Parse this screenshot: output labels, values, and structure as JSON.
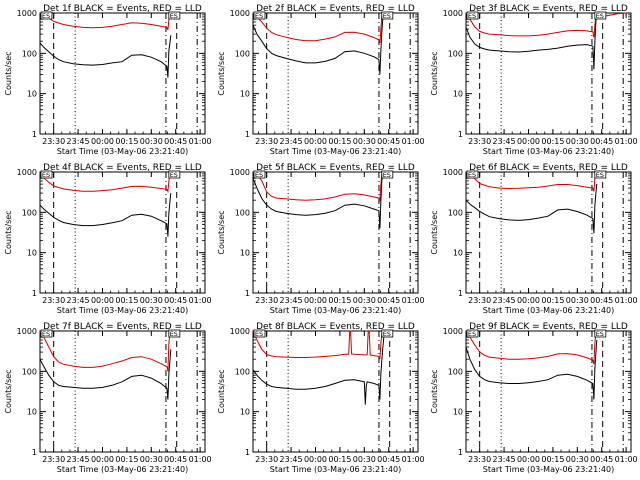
{
  "colors": {
    "events": "#000000",
    "lld": "#d40000",
    "axes": "#000000",
    "background": "#ffffff"
  },
  "shared": {
    "ylabel": "Counts/sec",
    "xlabel": "Start Time (03-May-06 23:21:40)",
    "y_scale": "log",
    "ylim": [
      1,
      1000
    ],
    "xlim": [
      23.36,
      25.05
    ],
    "y_ticks": [
      {
        "v": 1,
        "label": "1"
      },
      {
        "v": 10,
        "label": "10"
      },
      {
        "v": 100,
        "label": "100"
      },
      {
        "v": 1000,
        "label": "1000"
      }
    ],
    "x_ticks": [
      {
        "v": 23.5,
        "label": "23:30"
      },
      {
        "v": 23.75,
        "label": "23:45"
      },
      {
        "v": 24.0,
        "label": "00:00"
      },
      {
        "v": 24.25,
        "label": "00:15"
      },
      {
        "v": 24.5,
        "label": "00:30"
      },
      {
        "v": 24.75,
        "label": "00:45"
      },
      {
        "v": 25.0,
        "label": "01:00"
      }
    ],
    "marker_label": "ES",
    "reference_lines": [
      {
        "x": 23.5,
        "style": "dashed"
      },
      {
        "x": 23.72,
        "style": "dotted"
      },
      {
        "x": 24.65,
        "style": "dashdot"
      },
      {
        "x": 24.76,
        "style": "dashed"
      },
      {
        "x": 24.97,
        "style": "dashdot"
      }
    ]
  },
  "chart_data": [
    {
      "type": "line",
      "title": "Det 1f BLACK = Events, RED = LLD",
      "series": [
        {
          "name": "Events",
          "x": [
            23.36,
            23.4,
            23.45,
            23.5,
            23.55,
            23.6,
            23.7,
            23.8,
            23.9,
            24.0,
            24.1,
            24.2,
            24.3,
            24.4,
            24.5,
            24.6,
            24.66,
            24.67,
            24.68,
            24.69,
            24.7
          ],
          "y": [
            180,
            140,
            110,
            85,
            70,
            62,
            55,
            52,
            51,
            53,
            58,
            62,
            90,
            92,
            80,
            62,
            48,
            25,
            120,
            180,
            280
          ]
        },
        {
          "name": "LLD",
          "x": [
            23.36,
            23.4,
            23.45,
            23.5,
            23.6,
            23.7,
            23.8,
            23.9,
            24.0,
            24.1,
            24.2,
            24.3,
            24.4,
            24.5,
            24.6,
            24.66,
            24.67,
            24.68,
            24.69,
            24.7
          ],
          "y": [
            1000,
            900,
            760,
            620,
            520,
            470,
            440,
            430,
            440,
            470,
            520,
            570,
            560,
            520,
            470,
            440,
            380,
            700,
            950,
            1000
          ]
        }
      ]
    },
    {
      "type": "line",
      "title": "Det 2f BLACK = Events, RED = LLD",
      "series": [
        {
          "name": "Events",
          "x": [
            23.36,
            23.4,
            23.45,
            23.5,
            23.55,
            23.6,
            23.7,
            23.8,
            23.9,
            24.0,
            24.1,
            24.2,
            24.3,
            24.4,
            24.5,
            24.6,
            24.65,
            24.66,
            24.67,
            24.68,
            24.69,
            24.7
          ],
          "y": [
            500,
            300,
            200,
            130,
            100,
            88,
            75,
            65,
            58,
            58,
            63,
            75,
            110,
            115,
            100,
            82,
            70,
            30,
            120,
            350,
            800,
            1000
          ]
        },
        {
          "name": "LLD",
          "x": [
            23.36,
            23.4,
            23.45,
            23.5,
            23.55,
            23.6,
            23.7,
            23.8,
            23.9,
            24.0,
            24.1,
            24.2,
            24.3,
            24.4,
            24.5,
            24.6,
            24.65,
            24.66,
            24.67,
            24.68,
            24.69,
            24.7
          ],
          "y": [
            1000,
            800,
            600,
            420,
            330,
            290,
            250,
            220,
            205,
            205,
            225,
            255,
            330,
            335,
            300,
            245,
            215,
            180,
            400,
            900,
            1000,
            1000
          ]
        }
      ]
    },
    {
      "type": "line",
      "title": "Det 3f BLACK = Events, RED = LLD",
      "series": [
        {
          "name": "Events",
          "x": [
            23.36,
            23.4,
            23.45,
            23.5,
            23.55,
            23.6,
            23.7,
            23.8,
            23.9,
            24.0,
            24.1,
            24.2,
            24.3,
            24.4,
            24.5,
            24.6,
            24.66,
            24.67,
            24.68,
            24.69,
            24.7,
            24.8,
            24.9,
            25.0
          ],
          "y": [
            450,
            250,
            170,
            140,
            128,
            120,
            115,
            110,
            108,
            112,
            120,
            125,
            135,
            150,
            160,
            165,
            150,
            40,
            200,
            600,
            1000,
            1000,
            1000,
            1000
          ]
        },
        {
          "name": "LLD",
          "x": [
            23.36,
            23.4,
            23.45,
            23.5,
            23.55,
            23.6,
            23.7,
            23.8,
            23.9,
            24.0,
            24.1,
            24.2,
            24.3,
            24.4,
            24.5,
            24.6,
            24.66,
            24.67,
            24.68,
            24.69,
            24.7,
            24.8,
            24.9,
            25.0
          ],
          "y": [
            1000,
            700,
            450,
            350,
            320,
            300,
            290,
            275,
            270,
            270,
            280,
            300,
            330,
            360,
            370,
            360,
            340,
            250,
            500,
            900,
            1000,
            850,
            950,
            1000
          ]
        }
      ]
    },
    {
      "type": "line",
      "title": "Det 4f BLACK = Events, RED = LLD",
      "series": [
        {
          "name": "Events",
          "x": [
            23.36,
            23.4,
            23.45,
            23.5,
            23.55,
            23.6,
            23.7,
            23.8,
            23.9,
            24.0,
            24.1,
            24.2,
            24.3,
            24.4,
            24.5,
            24.6,
            24.66,
            24.67,
            24.68,
            24.69,
            24.7
          ],
          "y": [
            150,
            120,
            95,
            75,
            64,
            56,
            50,
            47,
            47,
            50,
            55,
            62,
            85,
            90,
            80,
            62,
            52,
            25,
            100,
            180,
            300
          ]
        },
        {
          "name": "LLD",
          "x": [
            23.36,
            23.4,
            23.45,
            23.5,
            23.6,
            23.7,
            23.8,
            23.9,
            24.0,
            24.1,
            24.2,
            24.3,
            24.4,
            24.5,
            24.6,
            24.66,
            24.67,
            24.68,
            24.69,
            24.7
          ],
          "y": [
            900,
            700,
            560,
            450,
            380,
            350,
            335,
            335,
            345,
            365,
            400,
            440,
            445,
            420,
            390,
            370,
            330,
            600,
            900,
            1000
          ]
        }
      ]
    },
    {
      "type": "line",
      "title": "Det 5f BLACK = Events, RED = LLD",
      "series": [
        {
          "name": "Events",
          "x": [
            23.36,
            23.4,
            23.45,
            23.5,
            23.55,
            23.6,
            23.7,
            23.8,
            23.9,
            24.0,
            24.1,
            24.2,
            24.3,
            24.4,
            24.5,
            24.6,
            24.65,
            24.66,
            24.67,
            24.68,
            24.69,
            24.7
          ],
          "y": [
            700,
            400,
            220,
            150,
            120,
            105,
            95,
            88,
            85,
            88,
            95,
            110,
            150,
            160,
            145,
            120,
            110,
            40,
            200,
            600,
            1000,
            1000
          ]
        },
        {
          "name": "LLD",
          "x": [
            23.36,
            23.4,
            23.45,
            23.5,
            23.55,
            23.6,
            23.7,
            23.8,
            23.9,
            24.0,
            24.1,
            24.2,
            24.3,
            24.4,
            24.5,
            24.6,
            24.65,
            24.66,
            24.67,
            24.68,
            24.69,
            24.7
          ],
          "y": [
            1000,
            900,
            600,
            320,
            250,
            225,
            215,
            205,
            200,
            205,
            215,
            240,
            280,
            290,
            270,
            240,
            225,
            200,
            500,
            950,
            1000,
            1000
          ]
        }
      ]
    },
    {
      "type": "line",
      "title": "Det 6f BLACK = Events, RED = LLD",
      "series": [
        {
          "name": "Events",
          "x": [
            23.36,
            23.4,
            23.45,
            23.5,
            23.55,
            23.6,
            23.7,
            23.8,
            23.9,
            24.0,
            24.1,
            24.2,
            24.3,
            24.4,
            24.5,
            24.6,
            24.66,
            24.67,
            24.68,
            24.69,
            24.7
          ],
          "y": [
            200,
            160,
            130,
            105,
            90,
            78,
            70,
            65,
            63,
            66,
            72,
            80,
            115,
            120,
            105,
            85,
            70,
            30,
            150,
            300,
            500
          ]
        },
        {
          "name": "LLD",
          "x": [
            23.36,
            23.4,
            23.45,
            23.5,
            23.6,
            23.7,
            23.8,
            23.9,
            24.0,
            24.1,
            24.2,
            24.3,
            24.4,
            24.5,
            24.6,
            24.66,
            24.67,
            24.68,
            24.69,
            24.7
          ],
          "y": [
            1000,
            850,
            680,
            520,
            430,
            400,
            390,
            395,
            405,
            420,
            450,
            490,
            490,
            460,
            420,
            400,
            330,
            700,
            950,
            1000
          ]
        }
      ]
    },
    {
      "type": "line",
      "title": "Det 7f BLACK = Events, RED = LLD",
      "series": [
        {
          "name": "Events",
          "x": [
            23.36,
            23.4,
            23.45,
            23.5,
            23.55,
            23.6,
            23.7,
            23.8,
            23.9,
            24.0,
            24.1,
            24.2,
            24.3,
            24.4,
            24.5,
            24.6,
            24.66,
            24.67,
            24.68,
            24.69,
            24.7
          ],
          "y": [
            200,
            130,
            80,
            55,
            45,
            42,
            40,
            38,
            38,
            40,
            45,
            55,
            75,
            80,
            68,
            50,
            38,
            20,
            90,
            180,
            350
          ]
        },
        {
          "name": "LLD",
          "x": [
            23.36,
            23.4,
            23.45,
            23.5,
            23.55,
            23.6,
            23.7,
            23.8,
            23.9,
            24.0,
            24.1,
            24.2,
            24.3,
            24.4,
            24.5,
            24.6,
            24.66,
            24.67,
            24.68,
            24.69,
            24.7
          ],
          "y": [
            1000,
            700,
            400,
            230,
            170,
            150,
            135,
            125,
            125,
            135,
            155,
            180,
            220,
            230,
            200,
            155,
            130,
            100,
            500,
            900,
            1000
          ]
        }
      ]
    },
    {
      "type": "line",
      "title": "Det 8f BLACK = Events, RED = LLD",
      "series": [
        {
          "name": "Events",
          "x": [
            23.36,
            23.4,
            23.45,
            23.5,
            23.55,
            23.6,
            23.7,
            23.8,
            23.9,
            24.0,
            24.1,
            24.2,
            24.3,
            24.4,
            24.5,
            24.51,
            24.52,
            24.53,
            24.6,
            24.65,
            24.66,
            24.67,
            24.68,
            24.69,
            24.7
          ],
          "y": [
            110,
            80,
            60,
            48,
            42,
            40,
            38,
            36,
            36,
            38,
            42,
            50,
            60,
            62,
            55,
            15,
            45,
            55,
            50,
            45,
            20,
            90,
            200,
            400,
            700
          ]
        },
        {
          "name": "LLD",
          "x": [
            23.36,
            23.4,
            23.45,
            23.5,
            23.55,
            23.6,
            23.7,
            23.8,
            23.9,
            24.0,
            24.1,
            24.2,
            24.3,
            24.34,
            24.35,
            24.36,
            24.37,
            24.4,
            24.5,
            24.53,
            24.54,
            24.55,
            24.56,
            24.6,
            24.65,
            24.66,
            24.67,
            24.68,
            24.69,
            24.7
          ],
          "y": [
            1000,
            600,
            350,
            260,
            240,
            230,
            225,
            220,
            220,
            225,
            235,
            245,
            265,
            265,
            1000,
            1000,
            270,
            265,
            255,
            255,
            1000,
            1000,
            255,
            245,
            235,
            200,
            500,
            900,
            1000,
            1000
          ]
        }
      ]
    },
    {
      "type": "line",
      "title": "Det 9f BLACK = Events, RED = LLD",
      "series": [
        {
          "name": "Events",
          "x": [
            23.36,
            23.4,
            23.45,
            23.5,
            23.55,
            23.6,
            23.7,
            23.8,
            23.9,
            24.0,
            24.1,
            24.2,
            24.3,
            24.4,
            24.5,
            24.6,
            24.66,
            24.67,
            24.68,
            24.69,
            24.7
          ],
          "y": [
            400,
            200,
            110,
            75,
            62,
            56,
            52,
            50,
            50,
            52,
            56,
            62,
            80,
            85,
            75,
            60,
            50,
            20,
            120,
            300,
            600
          ]
        },
        {
          "name": "LLD",
          "x": [
            23.36,
            23.4,
            23.45,
            23.5,
            23.55,
            23.6,
            23.7,
            23.8,
            23.9,
            24.0,
            24.1,
            24.2,
            24.3,
            24.4,
            24.5,
            24.6,
            24.66,
            24.67,
            24.68,
            24.69,
            24.7
          ],
          "y": [
            1000,
            700,
            450,
            300,
            250,
            225,
            210,
            200,
            200,
            205,
            215,
            235,
            270,
            275,
            255,
            215,
            190,
            150,
            500,
            900,
            1000
          ]
        }
      ]
    }
  ]
}
